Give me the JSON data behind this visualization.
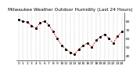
{
  "title": "Milwaukee Weather Outdoor Humidity (Last 24 Hours)",
  "x_values": [
    0,
    1,
    2,
    3,
    4,
    5,
    6,
    7,
    8,
    9,
    10,
    11,
    12,
    13,
    14,
    15,
    16,
    17,
    18,
    19,
    20,
    21,
    22,
    23,
    24
  ],
  "y_values": [
    82,
    80,
    79,
    75,
    72,
    78,
    80,
    76,
    68,
    60,
    52,
    48,
    44,
    42,
    48,
    52,
    55,
    50,
    58,
    62,
    65,
    60,
    55,
    63,
    68
  ],
  "ylim": [
    35,
    90
  ],
  "yticks": [
    40,
    50,
    60,
    70,
    80
  ],
  "line_color": "#cc0000",
  "dot_color": "#000000",
  "bg_color": "#ffffff",
  "grid_color": "#888888",
  "title_fontsize": 4.2,
  "tick_fontsize": 3.2
}
